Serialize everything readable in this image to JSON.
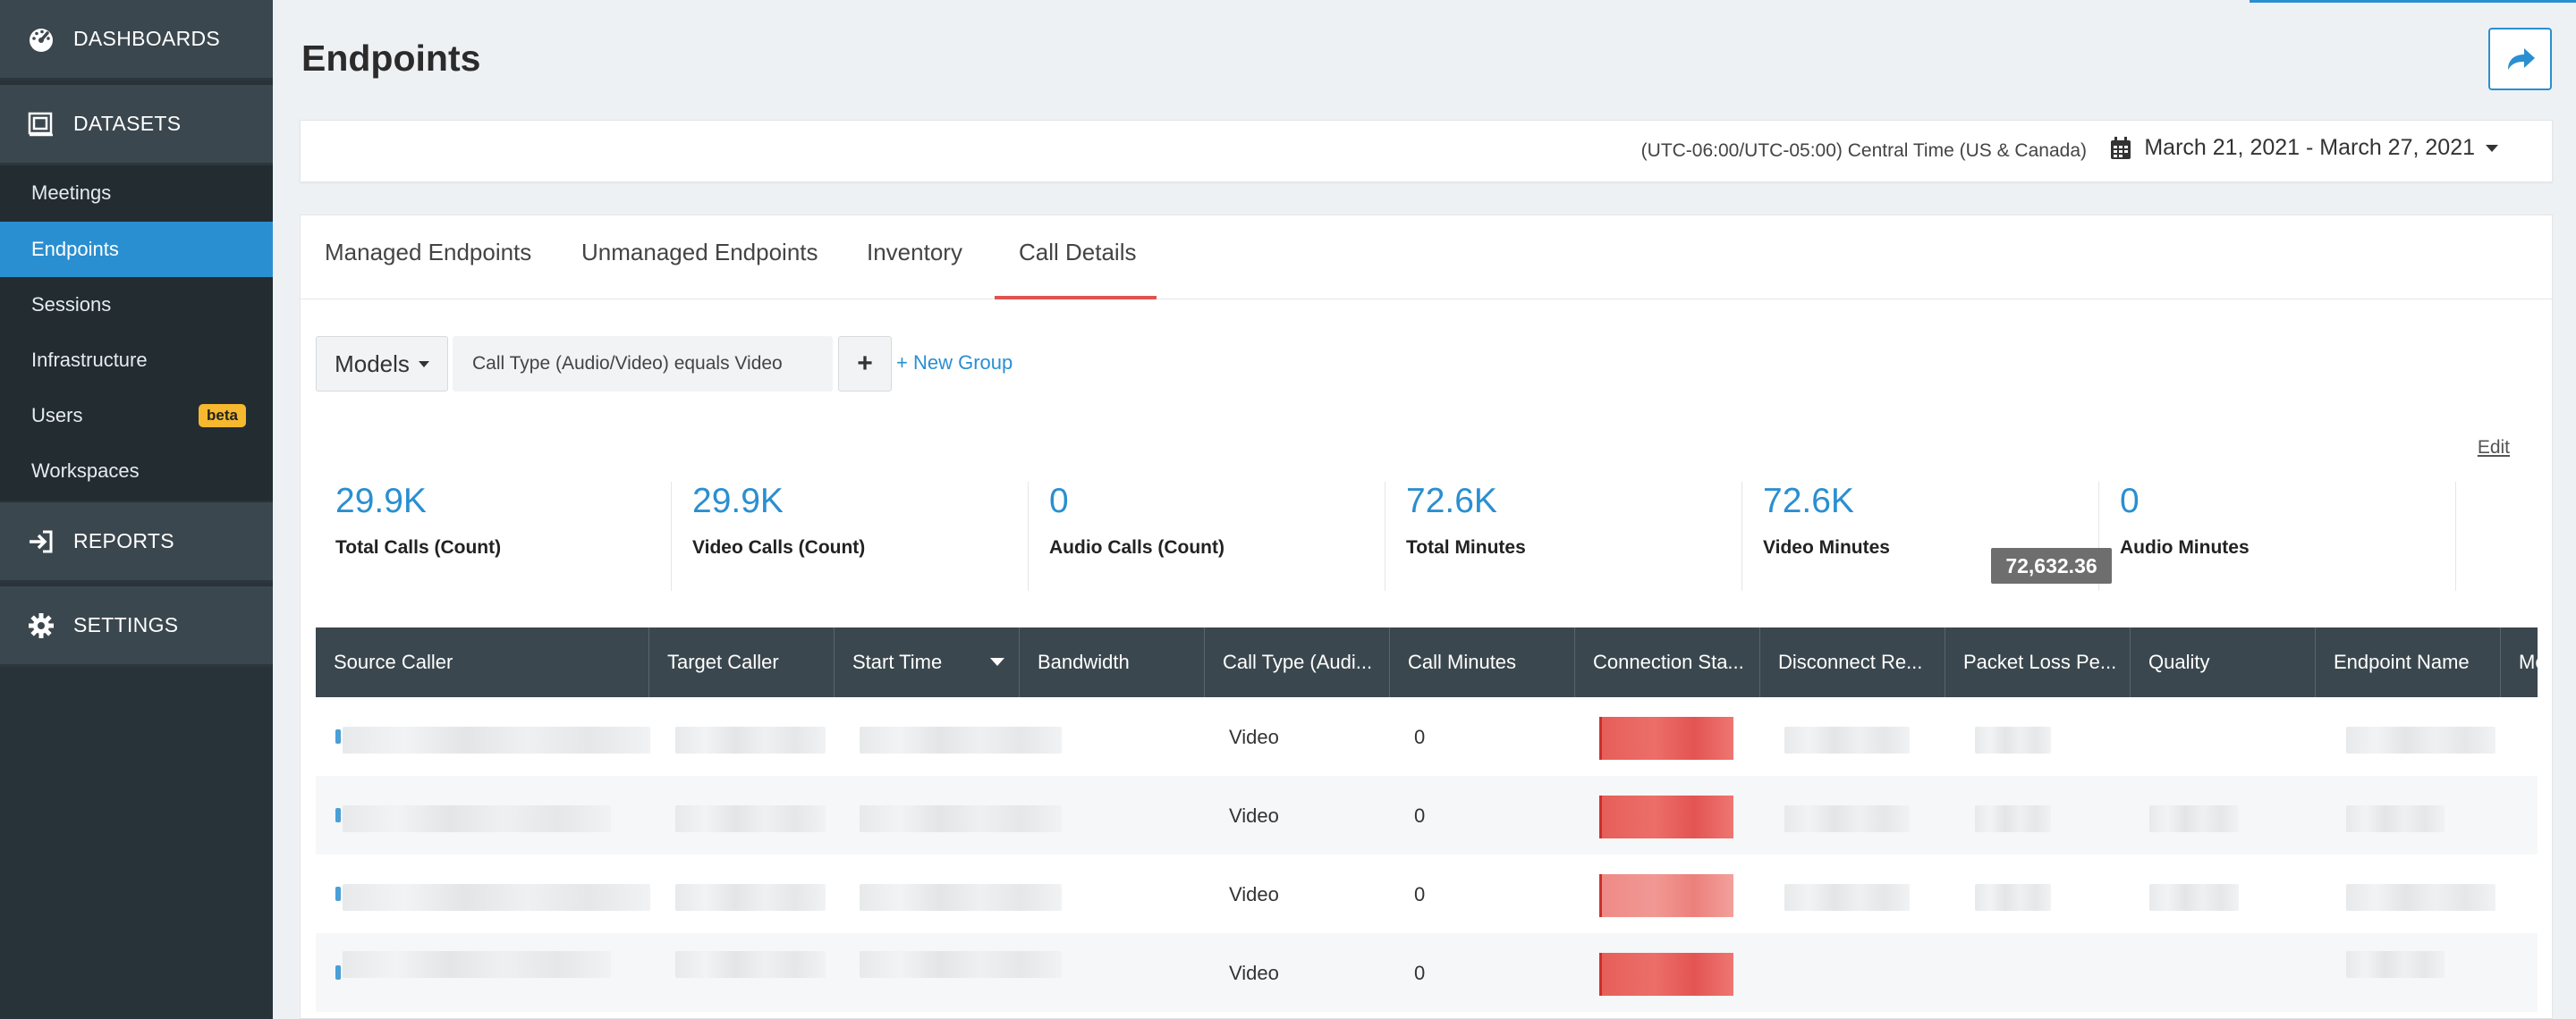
{
  "sidebar": {
    "sections": [
      {
        "label": "DASHBOARDS",
        "icon": "dashboard-gauge-icon"
      },
      {
        "label": "DATASETS",
        "icon": "datasets-icon"
      },
      {
        "label": "REPORTS",
        "icon": "reports-signin-icon"
      },
      {
        "label": "SETTINGS",
        "icon": "gear-icon"
      }
    ],
    "items": [
      {
        "label": "Meetings"
      },
      {
        "label": "Endpoints",
        "active": true
      },
      {
        "label": "Sessions"
      },
      {
        "label": "Infrastructure"
      },
      {
        "label": "Users",
        "badge": "beta"
      },
      {
        "label": "Workspaces"
      }
    ]
  },
  "header": {
    "title": "Endpoints",
    "share_icon": "share-arrow-icon"
  },
  "filter": {
    "timezone": "(UTC-06:00/UTC-05:00) Central Time (US & Canada)",
    "date_range": "March 21, 2021 - March 27, 2021",
    "calendar_icon": "calendar-icon"
  },
  "tabs": [
    {
      "label": "Managed Endpoints"
    },
    {
      "label": "Unmanaged Endpoints"
    },
    {
      "label": "Inventory"
    },
    {
      "label": "Call Details",
      "active": true
    }
  ],
  "query": {
    "models_label": "Models",
    "condition": "Call Type (Audio/Video) equals Video",
    "plus_label": "+",
    "new_group_label": "+ New Group",
    "edit_label": "Edit"
  },
  "metrics": [
    {
      "value": "29.9K",
      "label": "Total Calls (Count)"
    },
    {
      "value": "29.9K",
      "label": "Video Calls (Count)"
    },
    {
      "value": "0",
      "label": "Audio Calls (Count)"
    },
    {
      "value": "72.6K",
      "label": "Total Minutes"
    },
    {
      "value": "72.6K",
      "label": "Video Minutes"
    },
    {
      "value": "0",
      "label": "Audio Minutes"
    }
  ],
  "tooltip": "72,632.36",
  "table": {
    "columns": [
      "Source Caller",
      "Target Caller",
      "Start Time",
      "Bandwidth",
      "Call Type (Audi...",
      "Call Minutes",
      "Connection Sta...",
      "Disconnect Re...",
      "Packet Loss Pe...",
      "Quality",
      "Endpoint Name",
      "Me"
    ],
    "sorted_column": "Start Time",
    "rows": [
      {
        "call_type": "Video",
        "call_minutes": "0"
      },
      {
        "call_type": "Video",
        "call_minutes": "0"
      },
      {
        "call_type": "Video",
        "call_minutes": "0"
      },
      {
        "call_type": "Video",
        "call_minutes": "0"
      }
    ]
  },
  "colors": {
    "sidebar_bg": "#283339",
    "section_bg": "#3b474e",
    "accent_blue": "#2a8fd0",
    "tab_underline": "#e0534f",
    "badge": "#f5b82e",
    "status_red": "#e65f5a"
  }
}
